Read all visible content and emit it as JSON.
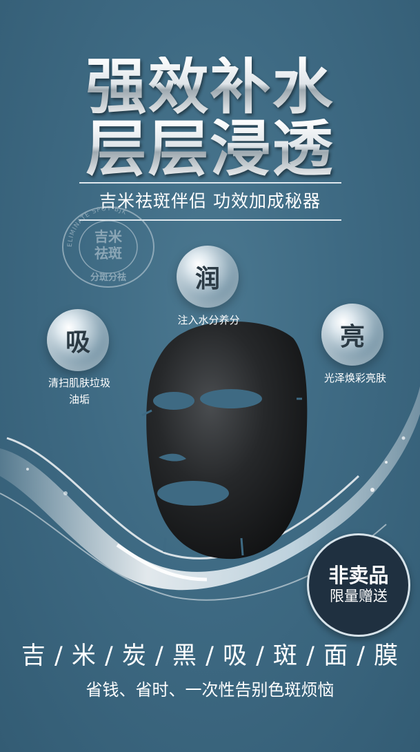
{
  "headline": {
    "line1": "强效补水",
    "line2": "层层浸透"
  },
  "subtitle": "吉米祛斑伴侣  功效加成秘器",
  "stamp": {
    "center_line1": "吉米",
    "center_line2": "祛斑",
    "bottom_text": "分斑分祛",
    "ring_text": "ELIMINATE SPOT·BJK"
  },
  "benefits": [
    {
      "char": "吸",
      "label_line1": "清扫肌肤垃圾",
      "label_line2": "油垢"
    },
    {
      "char": "润",
      "label_line1": "注入水分养分",
      "label_line2": ""
    },
    {
      "char": "亮",
      "label_line1": "光泽焕彩亮肤",
      "label_line2": ""
    }
  ],
  "badge": {
    "title": "非卖品",
    "subtitle": "限量赠送"
  },
  "product_line": "吉 / 米 / 炭 / 黑 / 吸 / 斑 / 面 / 膜",
  "tagline": "省钱、省时、一次性告别色斑烦恼",
  "colors": {
    "background": "#3e6a83",
    "badge": "#1f3040",
    "text": "#ffffff"
  }
}
